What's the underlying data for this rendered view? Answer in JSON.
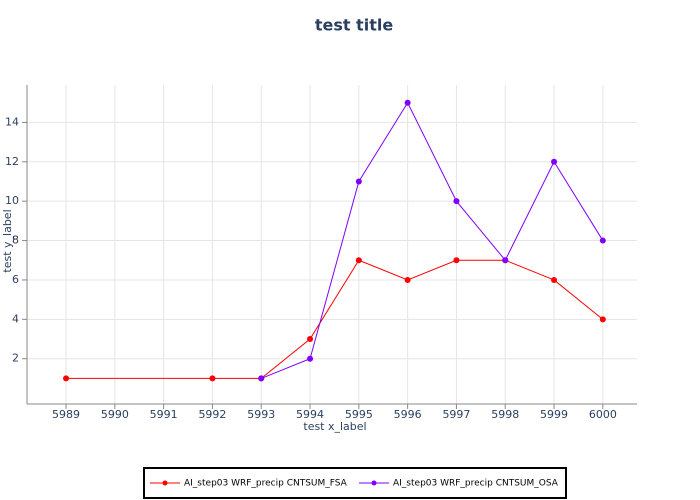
{
  "chart_data": {
    "type": "line",
    "title": "test title",
    "x_label": "test x_label",
    "y_label": "test y_label",
    "series": [
      {
        "name": "AI_step03 WRF_precip CNTSUM_FSA",
        "color": "#ff0000",
        "x": [
          5989,
          5992,
          5993,
          5994,
          5995,
          5996,
          5997,
          5998,
          5999,
          6000
        ],
        "values": [
          1,
          1,
          1,
          3,
          7,
          6,
          7,
          7,
          6,
          4
        ]
      },
      {
        "name": "AI_step03 WRF_precip CNTSUM_OSA",
        "color": "#7f00ff",
        "x": [
          5993,
          5994,
          5995,
          5996,
          5997,
          5998,
          5999,
          6000
        ],
        "values": [
          1,
          2,
          11,
          15,
          10,
          7,
          12,
          8
        ]
      }
    ],
    "xlim": [
      5988.2,
      6000.7
    ],
    "xticks": [
      5989,
      5990,
      5991,
      5992,
      5993,
      5994,
      5995,
      5996,
      5997,
      5998,
      5999,
      6000
    ],
    "ylim": [
      -0.3,
      15.9
    ],
    "yticks": [
      2,
      4,
      6,
      8,
      10,
      12,
      14
    ],
    "grid": true,
    "legend": "bottom"
  }
}
